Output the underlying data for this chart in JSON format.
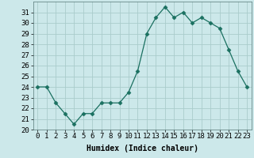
{
  "x": [
    0,
    1,
    2,
    3,
    4,
    5,
    6,
    7,
    8,
    9,
    10,
    11,
    12,
    13,
    14,
    15,
    16,
    17,
    18,
    19,
    20,
    21,
    22,
    23
  ],
  "y": [
    24,
    24,
    22.5,
    21.5,
    20.5,
    21.5,
    21.5,
    22.5,
    22.5,
    22.5,
    23.5,
    25.5,
    29,
    30.5,
    31.5,
    30.5,
    31,
    30,
    30.5,
    30,
    29.5,
    27.5,
    25.5,
    24
  ],
  "xlabel": "Humidex (Indice chaleur)",
  "ylim": [
    20,
    32
  ],
  "xlim": [
    -0.5,
    23.5
  ],
  "yticks": [
    20,
    21,
    22,
    23,
    24,
    25,
    26,
    27,
    28,
    29,
    30,
    31
  ],
  "xtick_labels": [
    "0",
    "1",
    "2",
    "3",
    "4",
    "5",
    "6",
    "7",
    "8",
    "9",
    "10",
    "11",
    "12",
    "13",
    "14",
    "15",
    "16",
    "17",
    "18",
    "19",
    "20",
    "21",
    "22",
    "23"
  ],
  "line_color": "#1a7060",
  "marker": "D",
  "marker_size": 2.5,
  "bg_color": "#cce8ea",
  "grid_color": "#aacccc",
  "label_fontsize": 7,
  "tick_fontsize": 6.5
}
